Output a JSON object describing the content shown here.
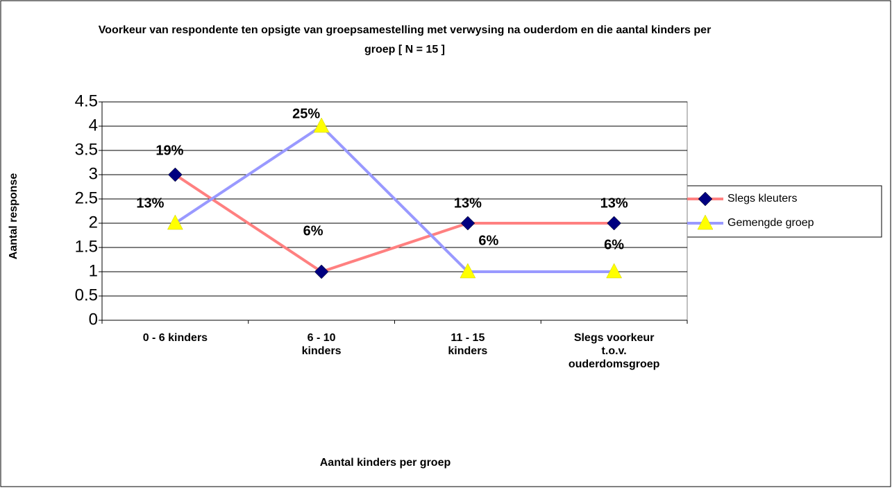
{
  "chart_data": {
    "type": "line",
    "title": "Voorkeur van respondente ten opsigte van groepsamestelling met verwysing na ouderdom en die aantal kinders per groep [ N = 15 ]",
    "x_label": "Aantal kinders per groep",
    "y_label": "Aantal response",
    "categories": [
      "0 - 6 kinders",
      "6 - 10 kinders",
      "11 - 15 kinders",
      "Slegs voorkeur t.o.v. ouderdomsgroep"
    ],
    "series": [
      {
        "name": "Slegs kleuters",
        "color": "#ff8080",
        "marker_color": "#000080",
        "marker": "diamond",
        "values": [
          3,
          1,
          2,
          2
        ],
        "value_labels": [
          "19%",
          "6%",
          "13%",
          "13%"
        ]
      },
      {
        "name": "Gemengde groep",
        "color": "#9999ff",
        "marker_color": "#ffff00",
        "marker": "triangle",
        "values": [
          2,
          4,
          1,
          1
        ],
        "value_labels": [
          "13%",
          "25%",
          "6%",
          "6%"
        ]
      }
    ],
    "ylim": [
      0,
      4.5
    ],
    "yticks": [
      0,
      0.5,
      1,
      1.5,
      2,
      2.5,
      3,
      3.5,
      4,
      4.5
    ],
    "grid": true,
    "legend": "right"
  }
}
